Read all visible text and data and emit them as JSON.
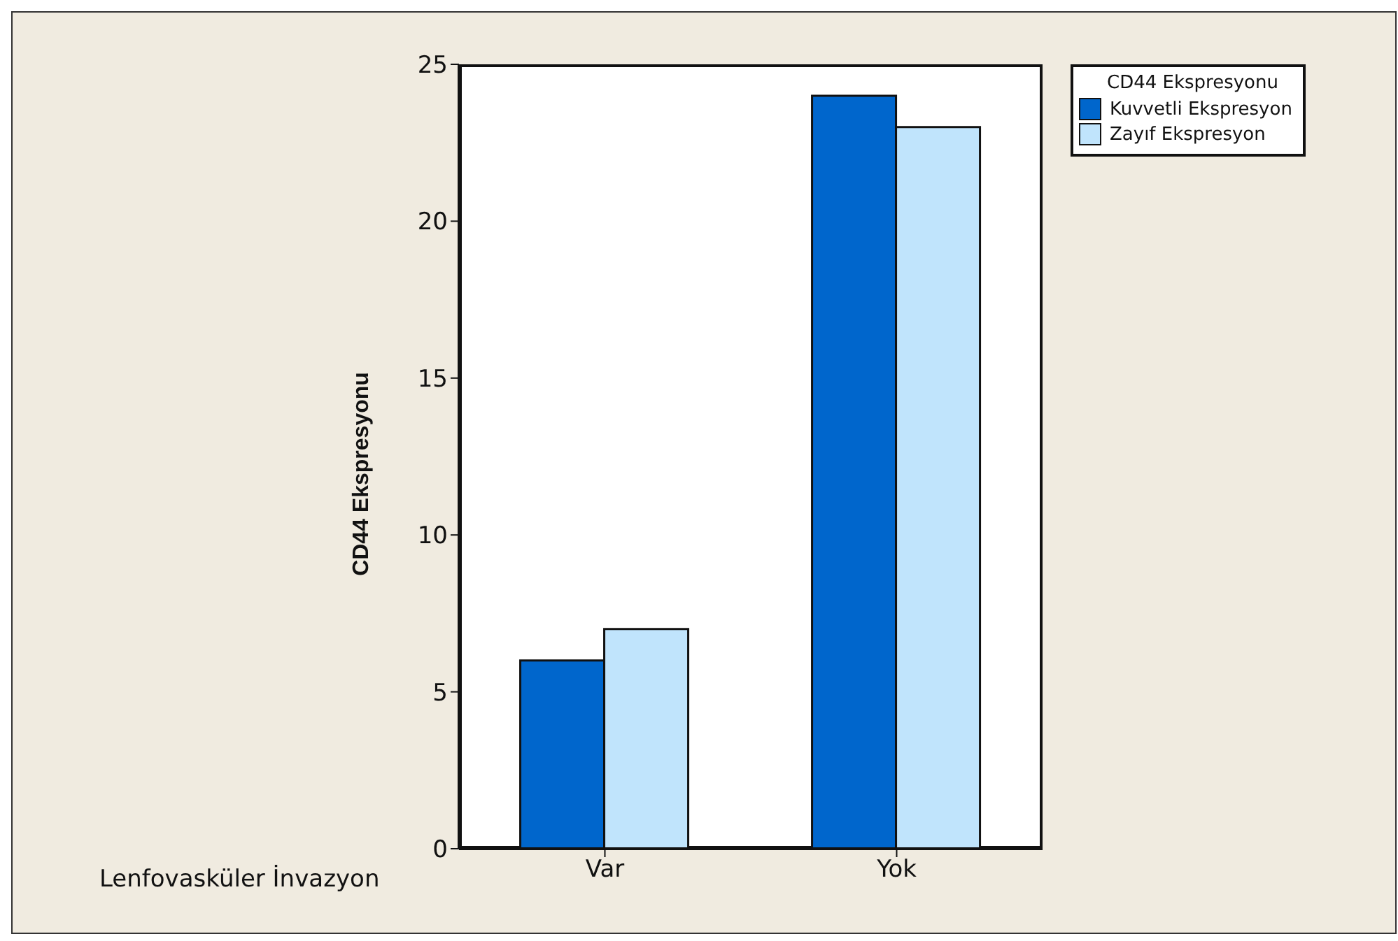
{
  "chart_data": {
    "type": "bar",
    "xlabel": "Lenfovasküler İnvazyon",
    "ylabel": "CD44 Ekspresyonu",
    "legend_title": "CD44 Ekspresyonu",
    "categories": [
      "Var",
      "Yok"
    ],
    "series": [
      {
        "name": "Kuvvetli Ekspresyon",
        "color": "#0066cc",
        "values": [
          6,
          24
        ]
      },
      {
        "name": "Zayıf Ekspresyon",
        "color": "#c0e4fc",
        "values": [
          7,
          23
        ]
      }
    ],
    "ylim": [
      0,
      25
    ],
    "yticks": [
      0,
      5,
      10,
      15,
      20,
      25
    ],
    "legend": "top right"
  }
}
